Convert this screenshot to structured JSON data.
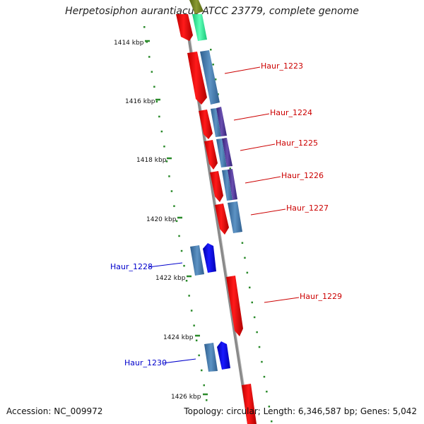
{
  "title": "Herpetosiphon aurantiacus ATCC 23779, complete genome",
  "ruler_labels": [
    "1414 kbp",
    "1416 kbp",
    "1418 kbp",
    "1420 kbp",
    "1422 kbp",
    "1424 kbp",
    "1426 kbp"
  ],
  "genes": [
    {
      "name": "Haur_1223",
      "strand": "forward",
      "color": "#cc0000"
    },
    {
      "name": "Haur_1224",
      "strand": "forward",
      "color": "#cc0000"
    },
    {
      "name": "Haur_1225",
      "strand": "forward",
      "color": "#cc0000"
    },
    {
      "name": "Haur_1226",
      "strand": "forward",
      "color": "#cc0000"
    },
    {
      "name": "Haur_1227",
      "strand": "forward",
      "color": "#cc0000"
    },
    {
      "name": "Haur_1228",
      "strand": "reverse",
      "color": "#0000cc"
    },
    {
      "name": "Haur_1229",
      "strand": "forward",
      "color": "#cc0000"
    },
    {
      "name": "Haur_1230",
      "strand": "reverse",
      "color": "#0000cc"
    }
  ],
  "colors": {
    "forward_gene": "#ff0000",
    "reverse_gene": "#0000ff",
    "cog_blue": "#4a7fb0",
    "cog_purple": "#553399",
    "cog_green": "#33ee99",
    "cog_olive": "#778822",
    "backbone": "#888888",
    "tick": "#2a8a2a"
  },
  "footer": {
    "accession": "Accession: NC_009972",
    "stats": "Topology: circular; Length: 6,346,587 bp; Genes: 5,042"
  }
}
